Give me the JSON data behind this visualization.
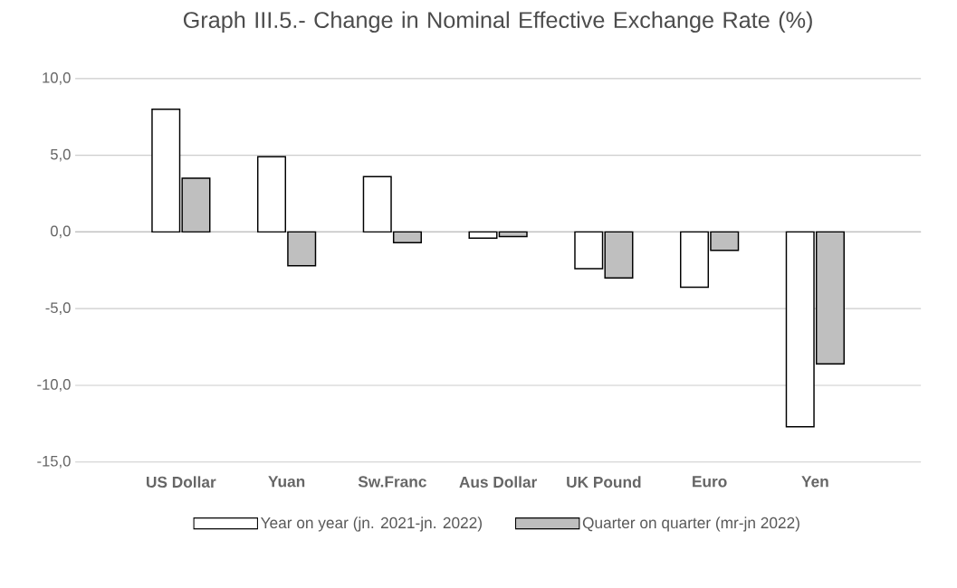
{
  "chart_data": {
    "type": "bar",
    "title": "Graph III.5.- Change in Nominal Effective Exchange Rate (%)",
    "categories": [
      "US Dollar",
      "Yuan",
      "Sw.Franc",
      "Aus Dollar",
      "UK Pound",
      "Euro",
      "Yen"
    ],
    "series": [
      {
        "name": "Year on year (jn. 2021-jn. 2022)",
        "color": "#ffffff",
        "values": [
          8.0,
          4.9,
          3.6,
          -0.4,
          -2.4,
          -3.6,
          -12.7
        ]
      },
      {
        "name": "Quarter on quarter (mr-jn 2022)",
        "color": "#bfbfbf",
        "values": [
          3.5,
          -2.2,
          -0.7,
          -0.3,
          -3.0,
          -1.2,
          -8.6
        ]
      }
    ],
    "ylim": [
      -15,
      10
    ],
    "yticks": [
      {
        "value": -15,
        "label": "-15,0"
      },
      {
        "value": -10,
        "label": "-10,0"
      },
      {
        "value": -5,
        "label": "-5,0"
      },
      {
        "value": 0,
        "label": "0,0"
      },
      {
        "value": 5,
        "label": "5,0"
      },
      {
        "value": 10,
        "label": "10,0"
      }
    ],
    "grid": "y",
    "legend": "bottom"
  }
}
